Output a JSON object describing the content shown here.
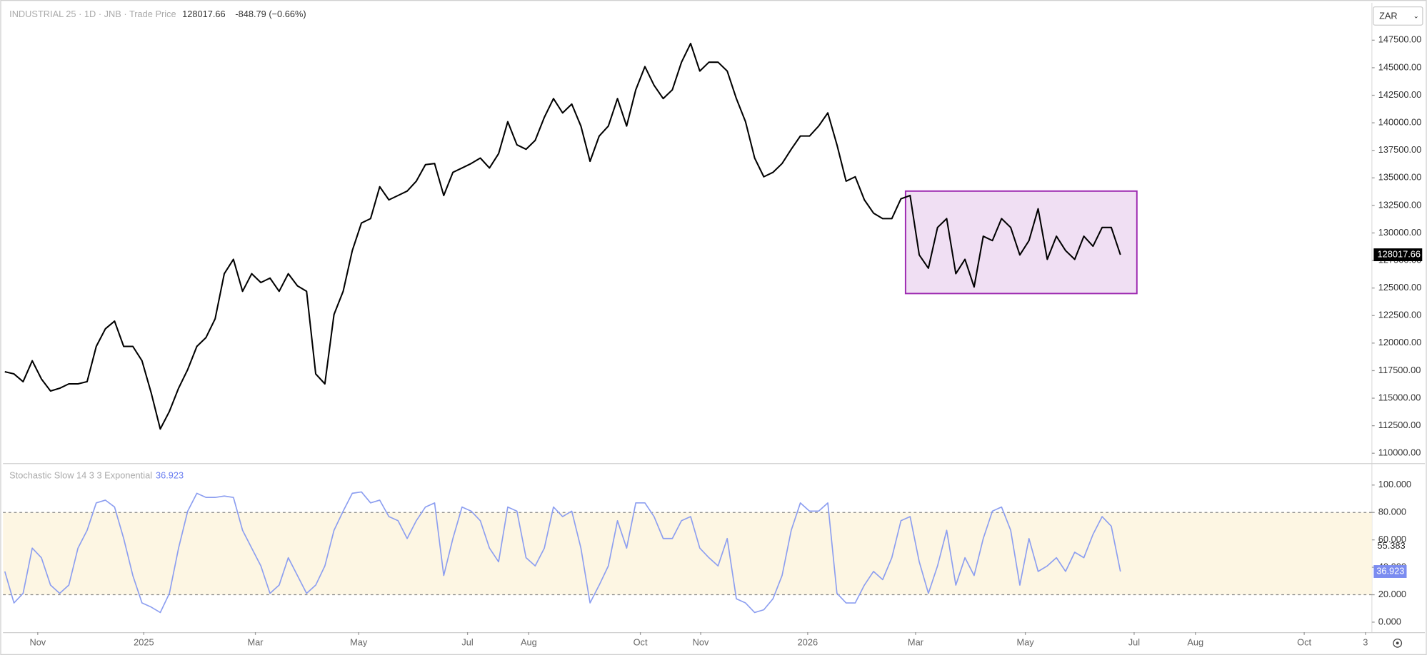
{
  "header": {
    "symbol": "INDUSTRIAL 25 · 1D · JNB · Trade Price",
    "change": "-848.79 (−0.66%)",
    "currency": "ZAR"
  },
  "chart_data": [
    {
      "type": "line",
      "color": "#000000",
      "grid": false,
      "xlim": [
        -0.2,
        149.5
      ],
      "ylim": [
        109100,
        150900
      ],
      "yticks": [
        {
          "value": 110000,
          "label": "110000.00"
        },
        {
          "value": 112500,
          "label": "112500.00"
        },
        {
          "value": 115000,
          "label": "115000.00"
        },
        {
          "value": 117500,
          "label": "117500.00"
        },
        {
          "value": 120000,
          "label": "120000.00"
        },
        {
          "value": 122500,
          "label": "122500.00"
        },
        {
          "value": 125000,
          "label": "125000.00"
        },
        {
          "value": 127500,
          "label": "127500.00"
        },
        {
          "value": 130000,
          "label": "130000.00"
        },
        {
          "value": 132500,
          "label": "132500.00"
        },
        {
          "value": 135000,
          "label": "135000.00"
        },
        {
          "value": 137500,
          "label": "137500.00"
        },
        {
          "value": 140000,
          "label": "140000.00"
        },
        {
          "value": 142500,
          "label": "142500.00"
        },
        {
          "value": 145000,
          "label": "145000.00"
        },
        {
          "value": 147500,
          "label": "147500.00"
        }
      ],
      "values": [
        117400,
        117200,
        116500,
        118400,
        116750,
        115650,
        115900,
        116300,
        116300,
        116500,
        119700,
        121300,
        122000,
        119700,
        119700,
        118400,
        115500,
        112200,
        113800,
        115900,
        117600,
        119700,
        120500,
        122200,
        126300,
        127600,
        124700,
        126300,
        125500,
        125900,
        124700,
        126300,
        125200,
        124700,
        117200,
        116300,
        122600,
        124700,
        128400,
        130900,
        131300,
        134200,
        133000,
        133400,
        133800,
        134700,
        136200,
        136300,
        133400,
        135500,
        135900,
        136300,
        136800,
        135900,
        137200,
        140100,
        138000,
        137600,
        138400,
        140500,
        142200,
        140900,
        141700,
        139700,
        136500,
        138800,
        139700,
        142200,
        139700,
        143000,
        145100,
        143400,
        142200,
        143000,
        145500,
        147200,
        144700,
        145500,
        145500,
        144700,
        142200,
        140100,
        136800,
        135100,
        135500,
        136300,
        137600,
        138800,
        138800,
        139700,
        140900,
        138000,
        134700,
        135100,
        133000,
        131800,
        131300,
        131300,
        133100,
        133400,
        128000,
        126800,
        130500,
        131300,
        126300,
        127600,
        125100,
        129700,
        129300,
        131300,
        130500,
        128000,
        129300,
        132200,
        127600,
        129700,
        128400,
        127600,
        129700,
        128800,
        130500,
        130500,
        128017.66
      ],
      "range_box": {
        "x": [
          98.5,
          123.8
        ],
        "y": [
          124500,
          133800
        ],
        "color": "#9c27b0"
      }
    },
    {
      "type": "line",
      "title": "Stochastic Slow 14 3 3 Exponential",
      "color": "#8c9ef0",
      "grid": false,
      "xlim": [
        -0.2,
        149.5
      ],
      "ylim": [
        -7.3,
        115.3
      ],
      "band": [
        20,
        80
      ],
      "d_value": 55.383,
      "yticks": [
        {
          "value": 0,
          "label": "0.000"
        },
        {
          "value": 20,
          "label": "20.000"
        },
        {
          "value": 40,
          "label": "40.000"
        },
        {
          "value": 60,
          "label": "60.000"
        },
        {
          "value": 80,
          "label": "80.000"
        },
        {
          "value": 100,
          "label": "100.000"
        }
      ],
      "xticks": [
        {
          "value": 3.6,
          "label": "Nov"
        },
        {
          "value": 15.2,
          "label": "2025"
        },
        {
          "value": 27.4,
          "label": "Mar"
        },
        {
          "value": 38.7,
          "label": "May"
        },
        {
          "value": 50.6,
          "label": "Jul"
        },
        {
          "value": 57.3,
          "label": "Aug"
        },
        {
          "value": 69.5,
          "label": "Oct"
        },
        {
          "value": 76.1,
          "label": "Nov"
        },
        {
          "value": 87.8,
          "label": "2026"
        },
        {
          "value": 99.6,
          "label": "Mar"
        },
        {
          "value": 111.6,
          "label": "May"
        },
        {
          "value": 123.5,
          "label": "Jul"
        },
        {
          "value": 130.2,
          "label": "Aug"
        },
        {
          "value": 142.1,
          "label": "Oct"
        },
        {
          "value": 148.8,
          "label": "3"
        }
      ],
      "values": [
        37,
        14,
        21,
        54,
        47,
        27,
        21,
        27,
        54,
        67,
        87,
        89,
        84,
        61,
        34,
        14,
        11,
        7,
        21,
        54,
        81,
        94,
        91,
        91,
        92,
        91,
        67,
        54,
        41,
        21,
        27,
        47,
        34,
        21,
        27,
        41,
        67,
        81,
        94,
        95,
        87,
        89,
        77,
        74,
        61,
        74,
        84,
        87,
        34,
        61,
        84,
        81,
        74,
        54,
        44,
        84,
        81,
        47,
        41,
        54,
        84,
        77,
        81,
        54,
        14,
        27,
        41,
        74,
        54,
        87,
        87,
        77,
        61,
        61,
        74,
        77,
        54,
        47,
        41,
        61,
        17,
        14,
        7,
        9,
        17,
        34,
        67,
        87,
        81,
        81,
        87,
        21,
        14,
        14,
        27,
        37,
        31,
        47,
        74,
        77,
        44,
        21,
        41,
        67,
        27,
        47,
        34,
        61,
        81,
        84,
        67,
        27,
        61,
        37,
        41,
        47,
        37,
        51,
        47,
        64,
        77,
        70,
        36.923
      ]
    }
  ]
}
